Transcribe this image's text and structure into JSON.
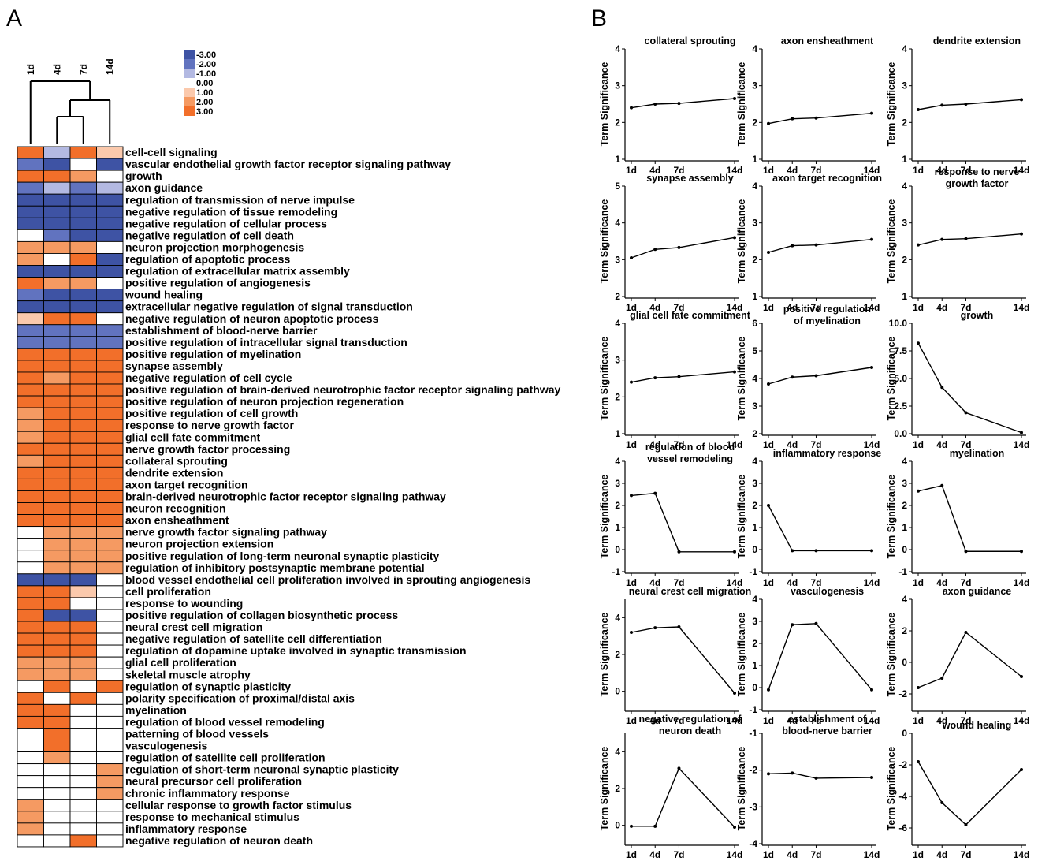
{
  "panels": {
    "a": "A",
    "b": "B"
  },
  "colors": {
    "neg3": "#3e53a4",
    "neg2": "#6173bf",
    "neg1": "#b3b9e2",
    "zero": "#ffffff",
    "pos1": "#fbc9ac",
    "pos2": "#f59a62",
    "pos3": "#f26f2a",
    "line": "#000000",
    "grid": "#000000"
  },
  "legend": [
    {
      "label": "-3.00",
      "color": "neg3"
    },
    {
      "label": "-2.00",
      "color": "neg2"
    },
    {
      "label": "-1.00",
      "color": "neg1"
    },
    {
      "label": "0.00",
      "color": "zero"
    },
    {
      "label": "1.00",
      "color": "pos1"
    },
    {
      "label": "2.00",
      "color": "pos2"
    },
    {
      "label": "3.00",
      "color": "pos3"
    }
  ],
  "heatmap": {
    "timepoints": [
      "1d",
      "4d",
      "7d",
      "14d"
    ],
    "rows": [
      {
        "term": "cell-cell signaling",
        "v": [
          3,
          -1,
          3,
          1
        ]
      },
      {
        "term": "vascular endothelial growth factor receptor signaling pathway",
        "v": [
          -2,
          -3,
          0,
          -3
        ]
      },
      {
        "term": "growth",
        "v": [
          3,
          3,
          2,
          0
        ]
      },
      {
        "term": "axon guidance",
        "v": [
          -2,
          -1,
          -2,
          -1
        ]
      },
      {
        "term": "regulation of transmission of nerve impulse",
        "v": [
          -3,
          -3,
          -3,
          -3
        ]
      },
      {
        "term": "negative regulation of tissue remodeling",
        "v": [
          -3,
          -3,
          -3,
          -3
        ]
      },
      {
        "term": "negative regulation of cellular process",
        "v": [
          -3,
          -3,
          -3,
          -3
        ]
      },
      {
        "term": "negative regulation of cell death",
        "v": [
          0,
          -2,
          -3,
          -3
        ]
      },
      {
        "term": "neuron projection morphogenesis",
        "v": [
          2,
          2,
          2,
          0
        ]
      },
      {
        "term": "regulation of apoptotic process",
        "v": [
          2,
          0,
          3,
          -3
        ]
      },
      {
        "term": "regulation of extracellular matrix assembly",
        "v": [
          -3,
          -3,
          -3,
          -3
        ]
      },
      {
        "term": "positive regulation of angiogenesis",
        "v": [
          3,
          2,
          2,
          0
        ]
      },
      {
        "term": "wound healing",
        "v": [
          -2,
          -3,
          -3,
          -3
        ]
      },
      {
        "term": "extracellular negative regulation of signal transduction",
        "v": [
          -3,
          -3,
          -3,
          -3
        ]
      },
      {
        "term": "negative regulation of neuron apoptotic process",
        "v": [
          1,
          3,
          3,
          0
        ]
      },
      {
        "term": "establishment of blood-nerve barrier",
        "v": [
          -2,
          -2,
          -2,
          -2
        ]
      },
      {
        "term": "positive regulation of intracellular signal transduction",
        "v": [
          -2,
          -2,
          -2,
          -2
        ]
      },
      {
        "term": "positive regulation of myelination",
        "v": [
          3,
          3,
          3,
          3
        ]
      },
      {
        "term": "synapse assembly",
        "v": [
          3,
          3,
          3,
          3
        ]
      },
      {
        "term": "negative regulation of cell cycle",
        "v": [
          3,
          2,
          3,
          3
        ]
      },
      {
        "term": "positive regulation of brain-derived neurotrophic factor receptor signaling pathway",
        "v": [
          3,
          3,
          3,
          3
        ]
      },
      {
        "term": "positive regulation of neuron projection regeneration",
        "v": [
          3,
          3,
          3,
          3
        ]
      },
      {
        "term": "positive regulation of cell growth",
        "v": [
          2,
          3,
          3,
          3
        ]
      },
      {
        "term": "response to nerve growth factor",
        "v": [
          2,
          3,
          3,
          3
        ]
      },
      {
        "term": "glial cell fate commitment",
        "v": [
          2,
          3,
          3,
          3
        ]
      },
      {
        "term": "nerve growth factor processing",
        "v": [
          3,
          3,
          3,
          3
        ]
      },
      {
        "term": "collateral sprouting",
        "v": [
          2,
          3,
          3,
          3
        ]
      },
      {
        "term": "dendrite extension",
        "v": [
          3,
          3,
          3,
          3
        ]
      },
      {
        "term": "axon target recognition",
        "v": [
          3,
          3,
          3,
          3
        ]
      },
      {
        "term": "brain-derived neurotrophic factor receptor signaling pathway",
        "v": [
          3,
          3,
          3,
          3
        ]
      },
      {
        "term": "neuron recognition",
        "v": [
          3,
          3,
          3,
          3
        ]
      },
      {
        "term": "axon ensheathment",
        "v": [
          3,
          3,
          3,
          3
        ]
      },
      {
        "term": "nerve growth factor signaling pathway",
        "v": [
          0,
          2,
          2,
          2
        ]
      },
      {
        "term": "neuron projection extension",
        "v": [
          0,
          2,
          2,
          2
        ]
      },
      {
        "term": "positive regulation of long-term neuronal synaptic plasticity",
        "v": [
          0,
          2,
          2,
          2
        ]
      },
      {
        "term": "regulation of inhibitory postsynaptic membrane potential",
        "v": [
          0,
          2,
          2,
          2
        ]
      },
      {
        "term": "blood vessel endothelial cell proliferation involved in sprouting angiogenesis",
        "v": [
          -3,
          -3,
          -3,
          0
        ]
      },
      {
        "term": "cell proliferation",
        "v": [
          3,
          3,
          1,
          0
        ]
      },
      {
        "term": "response to wounding",
        "v": [
          3,
          3,
          0,
          0
        ]
      },
      {
        "term": "positive regulation of collagen biosynthetic process",
        "v": [
          3,
          -3,
          -3,
          0
        ]
      },
      {
        "term": "neural crest cell migration",
        "v": [
          3,
          3,
          3,
          0
        ]
      },
      {
        "term": "negative regulation of satellite cell differentiation",
        "v": [
          3,
          3,
          3,
          0
        ]
      },
      {
        "term": "regulation of dopamine uptake involved in synaptic transmission",
        "v": [
          3,
          3,
          3,
          0
        ]
      },
      {
        "term": "glial cell proliferation",
        "v": [
          2,
          2,
          2,
          0
        ]
      },
      {
        "term": "skeletal muscle atrophy",
        "v": [
          2,
          2,
          2,
          0
        ]
      },
      {
        "term": "regulation of synaptic plasticity",
        "v": [
          0,
          3,
          0,
          3
        ]
      },
      {
        "term": "polarity specification of proximal/distal axis",
        "v": [
          3,
          0,
          3,
          0
        ]
      },
      {
        "term": "myelination",
        "v": [
          3,
          3,
          0,
          0
        ]
      },
      {
        "term": "regulation of blood vessel remodeling",
        "v": [
          3,
          3,
          0,
          0
        ]
      },
      {
        "term": "patterning of blood vessels",
        "v": [
          0,
          3,
          0,
          0
        ]
      },
      {
        "term": "vasculogenesis",
        "v": [
          0,
          3,
          0,
          0
        ]
      },
      {
        "term": "regulation of satellite cell proliferation",
        "v": [
          0,
          2,
          0,
          0
        ]
      },
      {
        "term": "regulation of short-term neuronal synaptic plasticity",
        "v": [
          0,
          0,
          0,
          2
        ]
      },
      {
        "term": "neural precursor cell proliferation",
        "v": [
          0,
          0,
          0,
          2
        ]
      },
      {
        "term": "chronic inflammatory response",
        "v": [
          0,
          0,
          0,
          2
        ]
      },
      {
        "term": "cellular response to growth factor stimulus",
        "v": [
          2,
          0,
          0,
          0
        ]
      },
      {
        "term": "response to mechanical stimulus",
        "v": [
          2,
          0,
          0,
          0
        ]
      },
      {
        "term": "inflammatory response",
        "v": [
          2,
          0,
          0,
          0
        ]
      },
      {
        "term": "negative regulation of neuron death",
        "v": [
          0,
          0,
          3,
          0
        ]
      }
    ]
  },
  "chart_data": [
    {
      "type": "line",
      "title": [
        "collateral sprouting"
      ],
      "ylabel": "Term Significance",
      "x": [
        1,
        4,
        7,
        14
      ],
      "xlabels": [
        "1d",
        "4d",
        "7d",
        "14d"
      ],
      "y": [
        2.4,
        2.5,
        2.52,
        2.65
      ],
      "ylim": [
        1,
        4
      ],
      "yticks": [
        1,
        2,
        3,
        4
      ]
    },
    {
      "type": "line",
      "title": [
        "axon ensheathment"
      ],
      "ylabel": "Term Significance",
      "x": [
        1,
        4,
        7,
        14
      ],
      "xlabels": [
        "1d",
        "4d",
        "7d",
        "14d"
      ],
      "y": [
        1.97,
        2.1,
        2.12,
        2.25
      ],
      "ylim": [
        1,
        4
      ],
      "yticks": [
        1,
        2,
        3,
        4
      ]
    },
    {
      "type": "line",
      "title": [
        "dendrite extension"
      ],
      "ylabel": "Term Significance",
      "x": [
        1,
        4,
        7,
        14
      ],
      "xlabels": [
        "1d",
        "4d",
        "7d",
        "14d"
      ],
      "y": [
        2.35,
        2.47,
        2.5,
        2.62
      ],
      "ylim": [
        1,
        4
      ],
      "yticks": [
        1,
        2,
        3,
        4
      ]
    },
    {
      "type": "line",
      "title": [
        "synapse assembly"
      ],
      "ylabel": "Term Significance",
      "x": [
        1,
        4,
        7,
        14
      ],
      "xlabels": [
        "1d",
        "4d",
        "7d",
        "14d"
      ],
      "y": [
        3.05,
        3.28,
        3.33,
        3.6
      ],
      "ylim": [
        2,
        5
      ],
      "yticks": [
        2,
        3,
        4,
        5
      ]
    },
    {
      "type": "line",
      "title": [
        "axon target recognition"
      ],
      "ylabel": "Term Significance",
      "x": [
        1,
        4,
        7,
        14
      ],
      "xlabels": [
        "1d",
        "4d",
        "7d",
        "14d"
      ],
      "y": [
        2.2,
        2.38,
        2.4,
        2.55
      ],
      "ylim": [
        1,
        4
      ],
      "yticks": [
        1,
        2,
        3,
        4
      ]
    },
    {
      "type": "line",
      "title": [
        "response to nerve",
        "growth factor"
      ],
      "ylabel": "Term Significance",
      "x": [
        1,
        4,
        7,
        14
      ],
      "xlabels": [
        "1d",
        "4d",
        "7d",
        "14d"
      ],
      "y": [
        2.4,
        2.55,
        2.57,
        2.7
      ],
      "ylim": [
        1,
        4
      ],
      "yticks": [
        1,
        2,
        3,
        4
      ]
    },
    {
      "type": "line",
      "title": [
        "glial cell fate commitment"
      ],
      "ylabel": "Term Significance",
      "x": [
        1,
        4,
        7,
        14
      ],
      "xlabels": [
        "1d",
        "4d",
        "7d",
        "14d"
      ],
      "y": [
        2.4,
        2.52,
        2.55,
        2.68
      ],
      "ylim": [
        1,
        4
      ],
      "yticks": [
        1,
        2,
        3,
        4
      ]
    },
    {
      "type": "line",
      "title": [
        "positive regulation",
        "of myelination"
      ],
      "ylabel": "Term Significance",
      "x": [
        1,
        4,
        7,
        14
      ],
      "xlabels": [
        "1d",
        "4d",
        "7d",
        "14d"
      ],
      "y": [
        3.8,
        4.05,
        4.1,
        4.4
      ],
      "ylim": [
        2,
        6
      ],
      "yticks": [
        2,
        3,
        4,
        5,
        6
      ]
    },
    {
      "type": "line",
      "title": [
        "growth"
      ],
      "ylabel": "Term Significance",
      "x": [
        1,
        4,
        7,
        14
      ],
      "xlabels": [
        "1d",
        "4d",
        "7d",
        "14d"
      ],
      "y": [
        8.2,
        4.2,
        1.9,
        0.1
      ],
      "ylim": [
        0,
        10
      ],
      "yticks": [
        0,
        2.5,
        5,
        7.5,
        10
      ],
      "ytickfmt": "1"
    },
    {
      "type": "line",
      "title": [
        "regulation of blood",
        "vessel remodeling"
      ],
      "ylabel": "Term Significance",
      "x": [
        1,
        4,
        7,
        14
      ],
      "xlabels": [
        "1d",
        "4d",
        "7d",
        "14d"
      ],
      "y": [
        2.45,
        2.55,
        -0.1,
        -0.1
      ],
      "ylim": [
        -1,
        4
      ],
      "yticks": [
        -1,
        0,
        1,
        2,
        3,
        4
      ]
    },
    {
      "type": "line",
      "title": [
        "inflammatory response"
      ],
      "ylabel": "Term Significance",
      "x": [
        1,
        4,
        7,
        14
      ],
      "xlabels": [
        "1d",
        "4d",
        "7d",
        "14d"
      ],
      "y": [
        2.0,
        -0.05,
        -0.05,
        -0.05
      ],
      "ylim": [
        -1,
        4
      ],
      "yticks": [
        -1,
        0,
        1,
        2,
        3,
        4
      ]
    },
    {
      "type": "line",
      "title": [
        "myelination"
      ],
      "ylabel": "Term Significance",
      "x": [
        1,
        4,
        7,
        14
      ],
      "xlabels": [
        "1d",
        "4d",
        "7d",
        "14d"
      ],
      "y": [
        2.65,
        2.9,
        -0.08,
        -0.08
      ],
      "ylim": [
        -1,
        4
      ],
      "yticks": [
        -1,
        0,
        1,
        2,
        3,
        4
      ]
    },
    {
      "type": "line",
      "title": [
        "neural crest cell migration"
      ],
      "ylabel": "Term Significance",
      "x": [
        1,
        4,
        7,
        14
      ],
      "xlabels": [
        "1d",
        "4d",
        "7d",
        "14d"
      ],
      "y": [
        3.2,
        3.45,
        3.5,
        -0.1
      ],
      "ylim": [
        -1,
        5
      ],
      "yticks": [
        0,
        2,
        4
      ]
    },
    {
      "type": "line",
      "title": [
        "vasculogenesis"
      ],
      "ylabel": "Term Significance",
      "x": [
        1,
        4,
        7,
        14
      ],
      "xlabels": [
        "1d",
        "4d",
        "7d",
        "14d"
      ],
      "y": [
        -0.1,
        2.85,
        2.9,
        -0.1
      ],
      "ylim": [
        -1,
        4
      ],
      "yticks": [
        -1,
        0,
        1,
        2,
        3,
        4
      ]
    },
    {
      "type": "line",
      "title": [
        "axon guidance"
      ],
      "ylabel": "Term Significance",
      "x": [
        1,
        4,
        7,
        14
      ],
      "xlabels": [
        "1d",
        "4d",
        "7d",
        "14d"
      ],
      "y": [
        -1.6,
        -1.0,
        1.9,
        -0.9
      ],
      "ylim": [
        -3,
        4
      ],
      "yticks": [
        -2,
        0,
        2,
        4
      ]
    },
    {
      "type": "line",
      "title": [
        "negative regulation of",
        "neuron death"
      ],
      "ylabel": "Term Significance",
      "x": [
        1,
        4,
        7,
        14
      ],
      "xlabels": [
        "1d",
        "4d",
        "7d",
        "14d"
      ],
      "y": [
        -0.05,
        -0.05,
        3.1,
        -0.1
      ],
      "ylim": [
        -1,
        5
      ],
      "yticks": [
        0,
        2,
        4
      ]
    },
    {
      "type": "line",
      "title": [
        "establishment of",
        "blood-nerve barrier"
      ],
      "ylabel": "Term Significance",
      "x": [
        1,
        4,
        7,
        14
      ],
      "xlabels": [
        "1d",
        "4d",
        "7d",
        "14d"
      ],
      "y": [
        -2.1,
        -2.08,
        -2.22,
        -2.2
      ],
      "ylim": [
        -4,
        -1
      ],
      "yticks": [
        -4,
        -3,
        -2,
        -1
      ]
    },
    {
      "type": "line",
      "title": [
        "wound healing"
      ],
      "ylabel": "Term Significance",
      "x": [
        1,
        4,
        7,
        14
      ],
      "xlabels": [
        "1d",
        "4d",
        "7d",
        "14d"
      ],
      "y": [
        -1.8,
        -4.4,
        -5.8,
        -2.3
      ],
      "ylim": [
        -7,
        0
      ],
      "yticks": [
        -6,
        -4,
        -2,
        0
      ]
    }
  ]
}
